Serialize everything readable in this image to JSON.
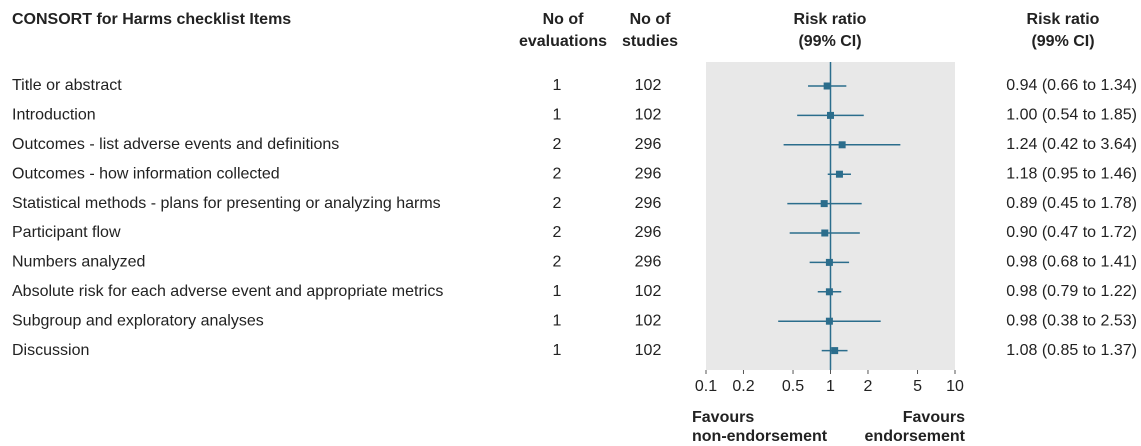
{
  "chart_data": {
    "type": "forest",
    "title": "CONSORT for Harms checklist Items",
    "column_headers": {
      "evaluations": [
        "No of",
        "evaluations"
      ],
      "studies": [
        "No of",
        "studies"
      ],
      "plot": [
        "Risk ratio",
        "(99% CI)"
      ],
      "ci": [
        "Risk ratio",
        "(99% CI)"
      ]
    },
    "categories": [
      "Title or abstract",
      "Introduction",
      "Outcomes - list adverse events and definitions",
      "Outcomes - how information collected",
      "Statistical methods - plans for presenting or analyzing harms",
      "Participant flow",
      "Numbers analyzed",
      "Absolute risk for each adverse event and appropriate metrics",
      "Subgroup and exploratory analyses",
      "Discussion"
    ],
    "evaluations": [
      1,
      1,
      2,
      2,
      2,
      2,
      2,
      1,
      1,
      1
    ],
    "studies": [
      102,
      102,
      296,
      296,
      296,
      296,
      296,
      102,
      102,
      102
    ],
    "series": [
      {
        "color": "#2b6d8c",
        "values": [
          0.94,
          1.0,
          1.24,
          1.18,
          0.89,
          0.9,
          0.98,
          0.98,
          0.98,
          1.08
        ],
        "lower": [
          0.66,
          0.54,
          0.42,
          0.95,
          0.45,
          0.47,
          0.68,
          0.79,
          0.38,
          0.85
        ],
        "upper": [
          1.34,
          1.85,
          3.64,
          1.46,
          1.78,
          1.72,
          1.41,
          1.22,
          2.53,
          1.37
        ],
        "value_labels": [
          "0.94 (0.66 to 1.34)",
          "1.00 (0.54 to 1.85)",
          "1.24 (0.42 to 3.64)",
          "1.18 (0.95 to 1.46)",
          "0.89 (0.45 to 1.78)",
          "0.90 (0.47 to 1.72)",
          "0.98 (0.68 to 1.41)",
          "0.98 (0.79 to 1.22)",
          "0.98 (0.38 to 2.53)",
          "1.08 (0.85 to 1.37)"
        ]
      }
    ],
    "xscale": "log",
    "xlim": [
      0.1,
      10
    ],
    "xticks": [
      0.1,
      0.2,
      0.5,
      1,
      2,
      5,
      10
    ],
    "reference_line": 1,
    "x_annotations": {
      "left": [
        "Favours",
        "non-endorsement"
      ],
      "right": [
        "Favours",
        "endorsement"
      ]
    }
  }
}
